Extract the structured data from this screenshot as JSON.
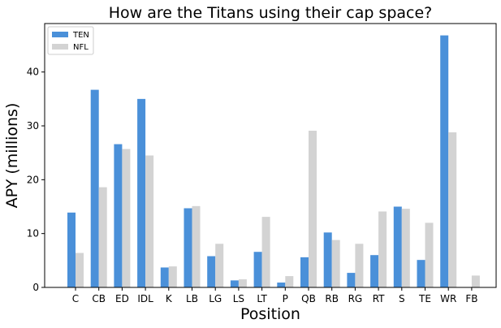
{
  "chart_data": {
    "type": "bar",
    "title": "How are the Titans using their cap space?",
    "xlabel": "Position",
    "ylabel": "APY (millions)",
    "categories": [
      "C",
      "CB",
      "ED",
      "IDL",
      "K",
      "LB",
      "LG",
      "LS",
      "LT",
      "P",
      "QB",
      "RB",
      "RG",
      "RT",
      "S",
      "TE",
      "WR",
      "FB"
    ],
    "series": [
      {
        "name": "TEN",
        "color": "#4a90d9",
        "values": [
          13.9,
          36.7,
          26.6,
          35.0,
          3.7,
          14.7,
          5.8,
          1.3,
          6.6,
          0.9,
          5.6,
          10.2,
          2.7,
          6.0,
          15.0,
          5.1,
          46.8,
          0
        ]
      },
      {
        "name": "NFL",
        "color": "#d3d3d3",
        "values": [
          6.4,
          18.6,
          25.7,
          24.5,
          3.9,
          15.1,
          8.1,
          1.5,
          13.1,
          2.1,
          29.1,
          8.8,
          8.1,
          14.1,
          14.6,
          12.0,
          28.8,
          2.2
        ]
      }
    ],
    "ylim": [
      0,
      49
    ],
    "yticks": [
      0,
      10,
      20,
      30,
      40
    ],
    "grid": false,
    "legend": {
      "position": "top-left",
      "entries": [
        "TEN",
        "NFL"
      ]
    }
  }
}
